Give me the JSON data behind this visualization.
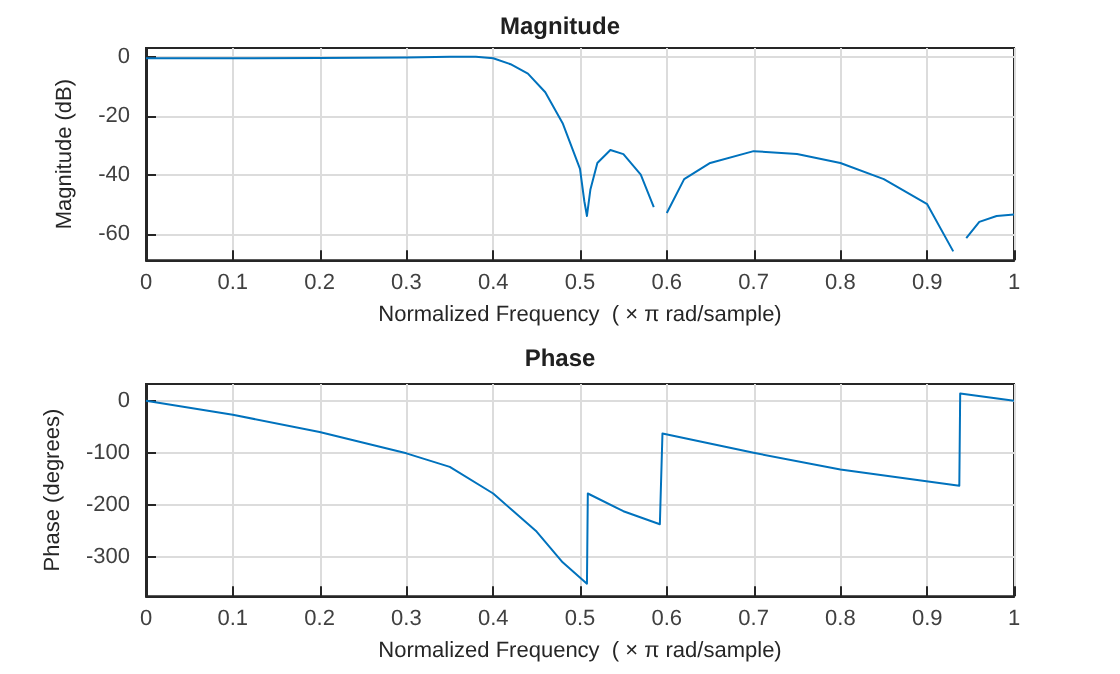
{
  "chart_data": [
    {
      "type": "line",
      "title": "Magnitude",
      "xlabel": "Normalized Frequency  ( × π rad/sample)",
      "ylabel": "Magnitude (dB)",
      "xlim": [
        0,
        1
      ],
      "xticks": [
        0,
        0.1,
        0.2,
        0.3,
        0.4,
        0.5,
        0.6,
        0.7,
        0.8,
        0.9,
        1
      ],
      "ylim": [
        -69,
        3
      ],
      "yticks": [
        -60,
        -40,
        -20,
        0
      ],
      "grid": true,
      "series": [
        {
          "color": "#0072bd",
          "x": [
            0,
            0.1,
            0.2,
            0.3,
            0.35,
            0.38,
            0.4,
            0.42,
            0.44,
            0.46,
            0.48,
            0.5,
            0.505,
            0.508,
            0.512,
            0.52,
            0.535,
            0.55,
            0.57,
            0.585,
            0.593,
            0.6,
            0.62,
            0.65,
            0.7,
            0.75,
            0.8,
            0.85,
            0.9,
            0.93,
            0.933,
            0.94,
            0.945,
            0.96,
            0.98,
            1
          ],
          "values": [
            -0.5,
            -0.5,
            -0.4,
            -0.2,
            0,
            0,
            -0.5,
            -2.5,
            -5.7,
            -12,
            -22.5,
            -38,
            -49,
            -54,
            -45,
            -36,
            -31.6,
            -33,
            -40,
            -51,
            null,
            -53,
            -41.5,
            -36,
            -32,
            -33,
            -36,
            -41.5,
            -50,
            -66,
            null,
            null,
            -61.5,
            -56,
            -54,
            -53.5
          ]
        }
      ]
    },
    {
      "type": "line",
      "title": "Phase",
      "xlabel": "Normalized Frequency  ( × π rad/sample)",
      "ylabel": "Phase (degrees)",
      "xlim": [
        0,
        1
      ],
      "xticks": [
        0,
        0.1,
        0.2,
        0.3,
        0.4,
        0.5,
        0.6,
        0.7,
        0.8,
        0.9,
        1
      ],
      "ylim": [
        -375,
        32
      ],
      "yticks": [
        -300,
        -200,
        -100,
        0
      ],
      "grid": true,
      "series": [
        {
          "color": "#0072bd",
          "x": [
            0,
            0.1,
            0.2,
            0.3,
            0.35,
            0.4,
            0.45,
            0.48,
            0.508,
            0.509,
            0.55,
            0.592,
            0.595,
            0.7,
            0.8,
            0.937,
            0.938,
            1
          ],
          "values": [
            0,
            -27,
            -60,
            -101,
            -127,
            -178,
            -251,
            -310,
            -351,
            -178,
            -212,
            -237,
            -63,
            -100,
            -132,
            -163,
            14,
            0
          ]
        }
      ]
    }
  ]
}
